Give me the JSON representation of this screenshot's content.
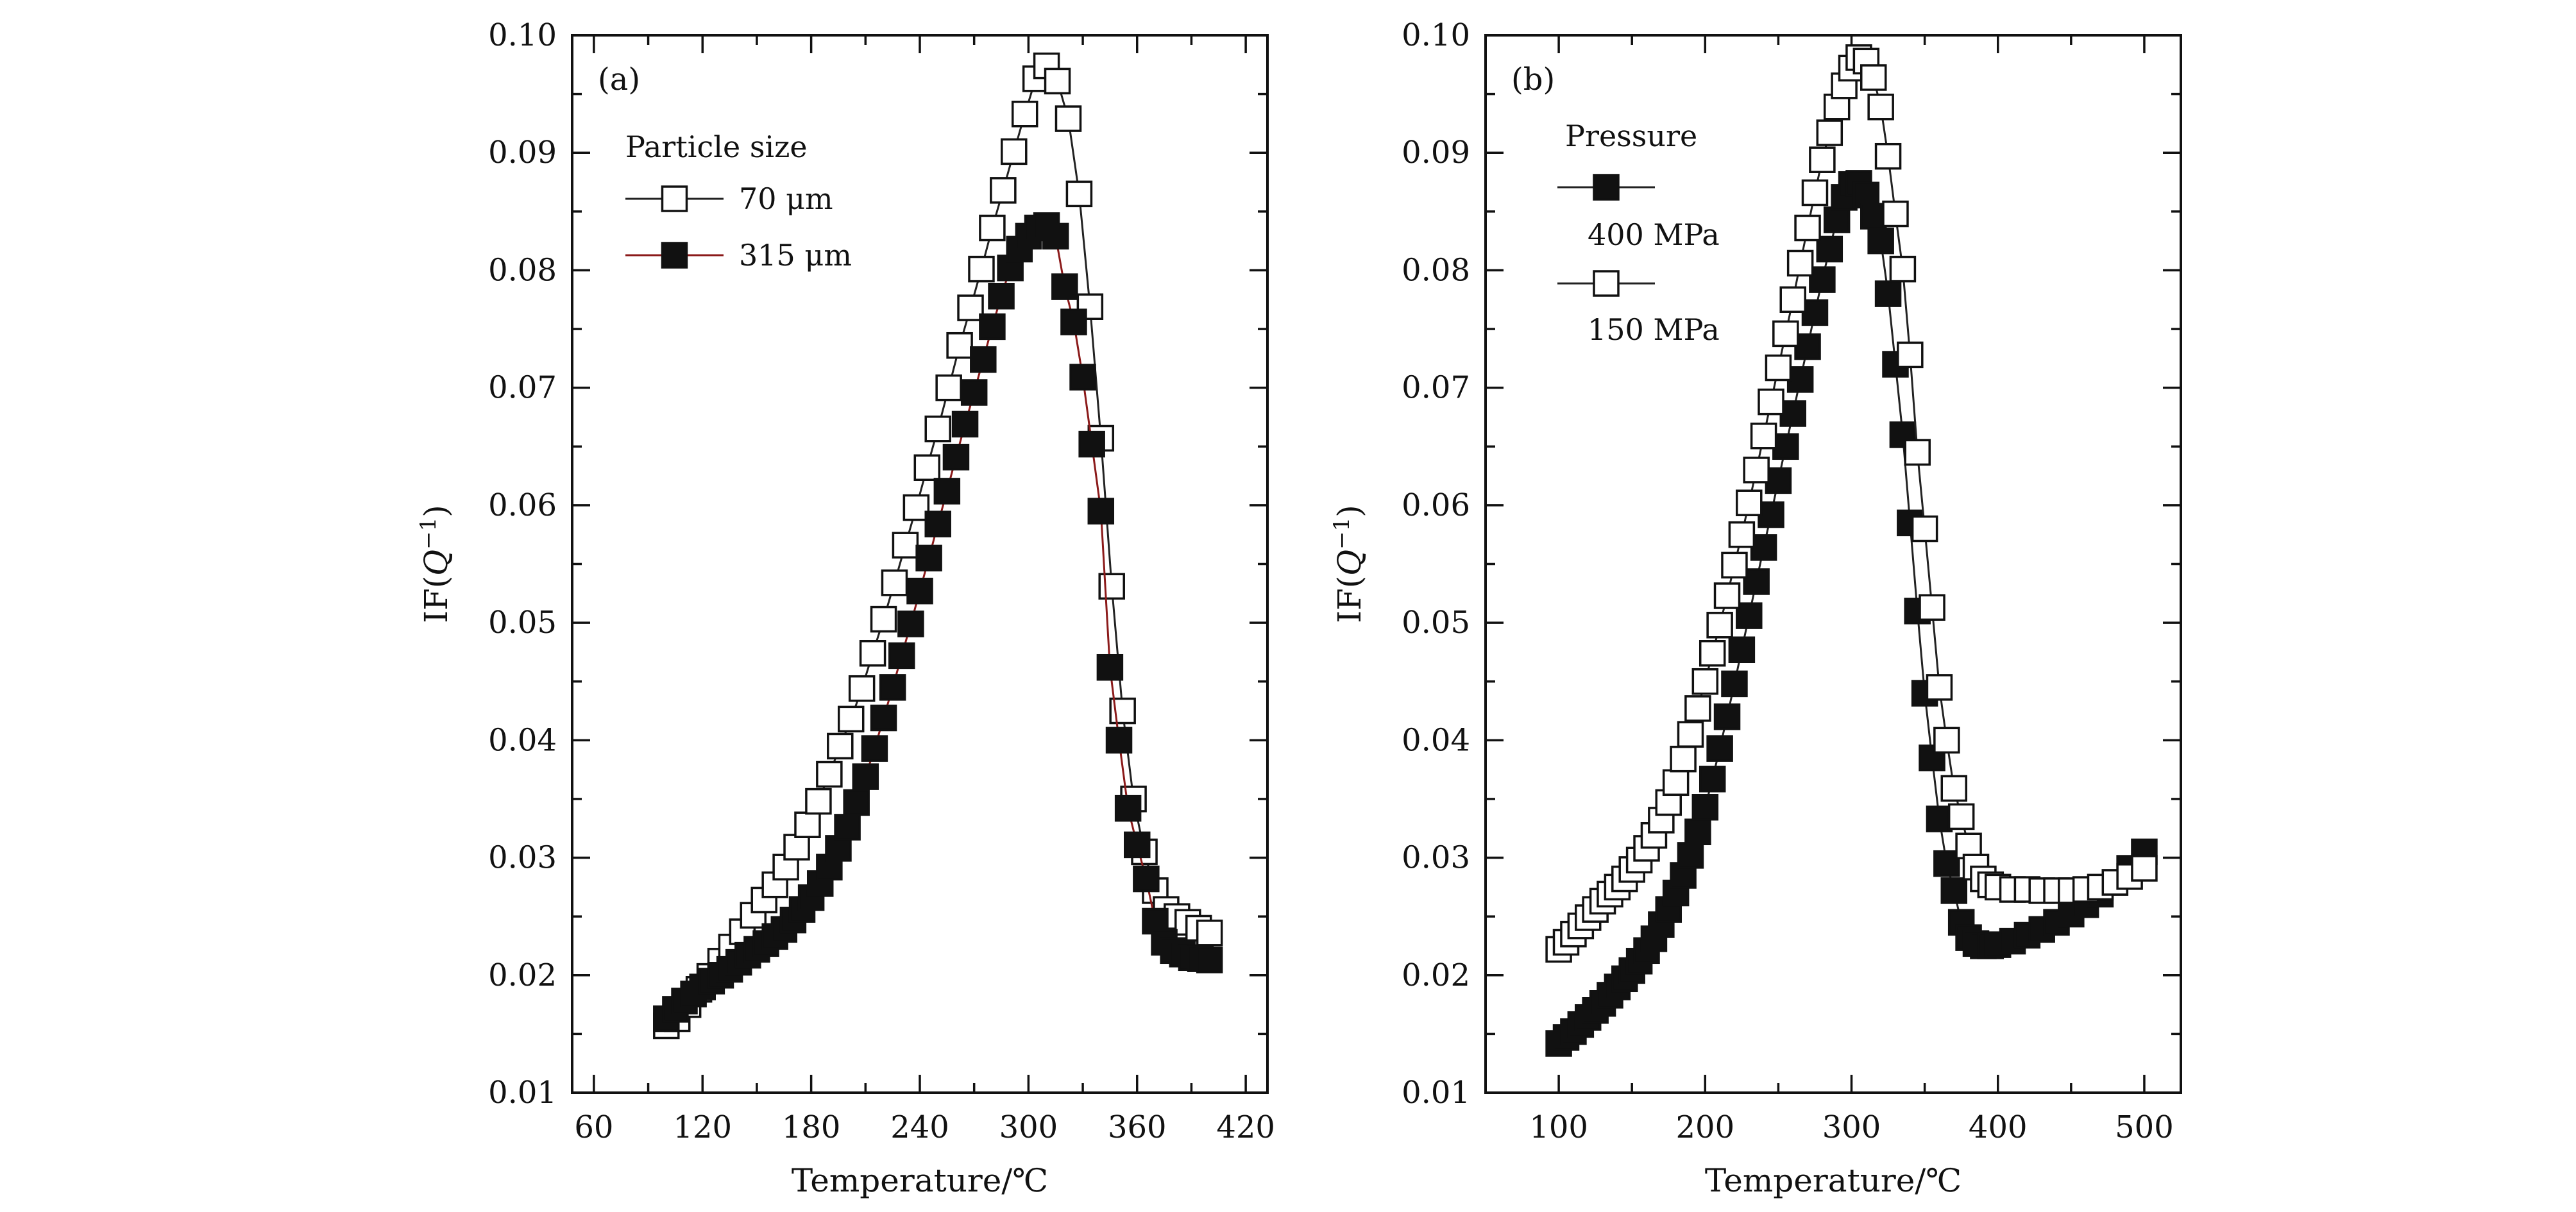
{
  "chart_data": [
    {
      "type": "scatter",
      "panel_label": "(a)",
      "xlabel": "Temperature/℃",
      "ylabel_prefix": "IF(",
      "ylabel_var": "Q",
      "ylabel_sup": "−1",
      "ylabel_suffix": ")",
      "xlim": [
        48,
        432
      ],
      "ylim": [
        0.01,
        0.1
      ],
      "xticks": [
        60,
        120,
        180,
        240,
        300,
        360,
        420
      ],
      "xtick_labels": [
        "60",
        "120",
        "180",
        "240",
        "300",
        "360",
        "420"
      ],
      "yticks": [
        0.01,
        0.02,
        0.03,
        0.04,
        0.05,
        0.06,
        0.07,
        0.08,
        0.09,
        0.1
      ],
      "ytick_labels": [
        "0.01",
        "0.02",
        "0.03",
        "0.04",
        "0.05",
        "0.06",
        "0.07",
        "0.08",
        "0.09",
        "0.10"
      ],
      "grid": false,
      "legend_title": "Particle size",
      "legend_position": "upper-left",
      "series": [
        {
          "name": "70 μm",
          "marker": "open-square",
          "line_color": "#222222",
          "x": [
            100,
            106,
            112,
            118,
            124,
            130,
            136,
            142,
            148,
            154,
            160,
            166,
            172,
            178,
            184,
            190,
            196,
            202,
            208,
            214,
            220,
            226,
            232,
            238,
            244,
            250,
            256,
            262,
            268,
            274,
            280,
            286,
            292,
            298,
            304,
            310,
            316,
            322,
            328,
            334,
            340,
            346,
            352,
            358,
            364,
            370,
            376,
            382,
            388,
            394,
            400
          ],
          "y": [
            0.0157,
            0.0163,
            0.0175,
            0.0188,
            0.0199,
            0.0212,
            0.0224,
            0.0237,
            0.0251,
            0.0264,
            0.0277,
            0.0292,
            0.0309,
            0.0328,
            0.0348,
            0.0371,
            0.0395,
            0.0418,
            0.0444,
            0.0474,
            0.0503,
            0.0534,
            0.0566,
            0.0598,
            0.0632,
            0.0665,
            0.07,
            0.0736,
            0.0768,
            0.0801,
            0.0836,
            0.0868,
            0.0901,
            0.0933,
            0.0963,
            0.0974,
            0.0961,
            0.0929,
            0.0865,
            0.0769,
            0.0657,
            0.0531,
            0.0425,
            0.035,
            0.0305,
            0.0272,
            0.0256,
            0.025,
            0.0245,
            0.024,
            0.0236
          ]
        },
        {
          "name": "315 μm",
          "marker": "filled-square",
          "line_color": "#8b1a1a",
          "x": [
            100,
            105,
            110,
            115,
            120,
            125,
            130,
            135,
            140,
            145,
            150,
            155,
            160,
            165,
            170,
            175,
            180,
            185,
            190,
            195,
            200,
            205,
            210,
            215,
            220,
            225,
            230,
            235,
            240,
            245,
            250,
            255,
            260,
            265,
            270,
            275,
            280,
            285,
            290,
            295,
            300,
            305,
            310,
            315,
            320,
            325,
            330,
            335,
            340,
            345,
            350,
            355,
            360,
            365,
            370,
            375,
            380,
            385,
            390,
            395,
            400
          ],
          "y": [
            0.0163,
            0.0171,
            0.0178,
            0.0184,
            0.019,
            0.0195,
            0.02,
            0.0205,
            0.0211,
            0.0217,
            0.0222,
            0.0227,
            0.0233,
            0.0239,
            0.0247,
            0.0256,
            0.0266,
            0.0278,
            0.0292,
            0.0308,
            0.0326,
            0.0347,
            0.0369,
            0.0393,
            0.0419,
            0.0445,
            0.0472,
            0.0499,
            0.0527,
            0.0555,
            0.0584,
            0.0612,
            0.0641,
            0.0669,
            0.0696,
            0.0724,
            0.0752,
            0.0778,
            0.0802,
            0.0818,
            0.0829,
            0.0836,
            0.0838,
            0.0829,
            0.0786,
            0.0756,
            0.0709,
            0.0652,
            0.0595,
            0.0462,
            0.04,
            0.0342,
            0.0311,
            0.0282,
            0.0246,
            0.0228,
            0.0221,
            0.0218,
            0.0215,
            0.0214,
            0.0213
          ]
        }
      ]
    },
    {
      "type": "scatter",
      "panel_label": "(b)",
      "xlabel": "Temperature/℃",
      "ylabel_prefix": "IF(",
      "ylabel_var": "Q",
      "ylabel_sup": "−1",
      "ylabel_suffix": ")",
      "xlim": [
        50,
        525
      ],
      "ylim": [
        0.01,
        0.1
      ],
      "xticks": [
        100,
        200,
        300,
        400,
        500
      ],
      "xtick_labels": [
        "100",
        "200",
        "300",
        "400",
        "500"
      ],
      "yticks": [
        0.01,
        0.02,
        0.03,
        0.04,
        0.05,
        0.06,
        0.07,
        0.08,
        0.09,
        0.1
      ],
      "ytick_labels": [
        "0.01",
        "0.02",
        "0.03",
        "0.04",
        "0.05",
        "0.06",
        "0.07",
        "0.08",
        "0.09",
        "0.10"
      ],
      "grid": false,
      "legend_title": "Pressure",
      "legend_position": "upper-left",
      "series": [
        {
          "name": "400 MPa",
          "marker": "filled-square",
          "line_color": "#222222",
          "x": [
            100,
            105,
            110,
            115,
            120,
            125,
            130,
            135,
            140,
            145,
            150,
            155,
            160,
            165,
            170,
            175,
            180,
            185,
            190,
            195,
            200,
            205,
            210,
            215,
            220,
            225,
            230,
            235,
            240,
            245,
            250,
            255,
            260,
            265,
            270,
            275,
            280,
            285,
            290,
            295,
            300,
            305,
            310,
            315,
            320,
            325,
            330,
            335,
            340,
            345,
            350,
            355,
            360,
            365,
            370,
            375,
            380,
            385,
            390,
            395,
            400,
            410,
            420,
            430,
            440,
            450,
            460,
            470,
            480,
            490,
            500
          ],
          "y": [
            0.0142,
            0.0147,
            0.0152,
            0.0158,
            0.0164,
            0.017,
            0.0176,
            0.0183,
            0.019,
            0.0197,
            0.0204,
            0.0212,
            0.0221,
            0.0231,
            0.0243,
            0.0256,
            0.027,
            0.0285,
            0.0302,
            0.0322,
            0.0343,
            0.0367,
            0.0393,
            0.042,
            0.0448,
            0.0477,
            0.0506,
            0.0535,
            0.0564,
            0.0592,
            0.0621,
            0.065,
            0.0678,
            0.0707,
            0.0735,
            0.0764,
            0.0792,
            0.0818,
            0.0843,
            0.0862,
            0.0873,
            0.0874,
            0.0864,
            0.0846,
            0.0825,
            0.078,
            0.072,
            0.066,
            0.0585,
            0.051,
            0.044,
            0.0385,
            0.0333,
            0.0295,
            0.0272,
            0.0245,
            0.0232,
            0.0227,
            0.0225,
            0.0225,
            0.0226,
            0.0229,
            0.0234,
            0.0239,
            0.0245,
            0.0252,
            0.026,
            0.0269,
            0.0279,
            0.0291,
            0.0305
          ]
        },
        {
          "name": "150 MPa",
          "marker": "open-square",
          "line_color": "#222222",
          "x": [
            100,
            105,
            110,
            115,
            120,
            125,
            130,
            135,
            140,
            145,
            150,
            155,
            160,
            165,
            170,
            175,
            180,
            185,
            190,
            195,
            200,
            205,
            210,
            215,
            220,
            225,
            230,
            235,
            240,
            245,
            250,
            255,
            260,
            265,
            270,
            275,
            280,
            285,
            290,
            295,
            300,
            305,
            310,
            315,
            320,
            325,
            330,
            335,
            340,
            345,
            350,
            355,
            360,
            365,
            370,
            375,
            380,
            385,
            390,
            395,
            400,
            410,
            420,
            430,
            440,
            450,
            460,
            470,
            480,
            490,
            500
          ],
          "y": [
            0.0222,
            0.0228,
            0.0235,
            0.0242,
            0.0249,
            0.0256,
            0.0263,
            0.0269,
            0.0275,
            0.0282,
            0.029,
            0.0298,
            0.0308,
            0.0319,
            0.0332,
            0.0347,
            0.0364,
            0.0384,
            0.0405,
            0.0427,
            0.045,
            0.0474,
            0.0498,
            0.0523,
            0.0549,
            0.0575,
            0.0602,
            0.063,
            0.0659,
            0.0688,
            0.0717,
            0.0746,
            0.0775,
            0.0806,
            0.0836,
            0.0866,
            0.0894,
            0.0917,
            0.0939,
            0.0957,
            0.0972,
            0.0981,
            0.0978,
            0.0964,
            0.0939,
            0.0897,
            0.0848,
            0.0801,
            0.0728,
            0.0645,
            0.058,
            0.0513,
            0.0445,
            0.04,
            0.0359,
            0.0335,
            0.031,
            0.0292,
            0.0282,
            0.0277,
            0.0275,
            0.0273,
            0.0273,
            0.0272,
            0.0272,
            0.0272,
            0.0273,
            0.0275,
            0.0279,
            0.0284,
            0.0291
          ]
        }
      ]
    }
  ]
}
